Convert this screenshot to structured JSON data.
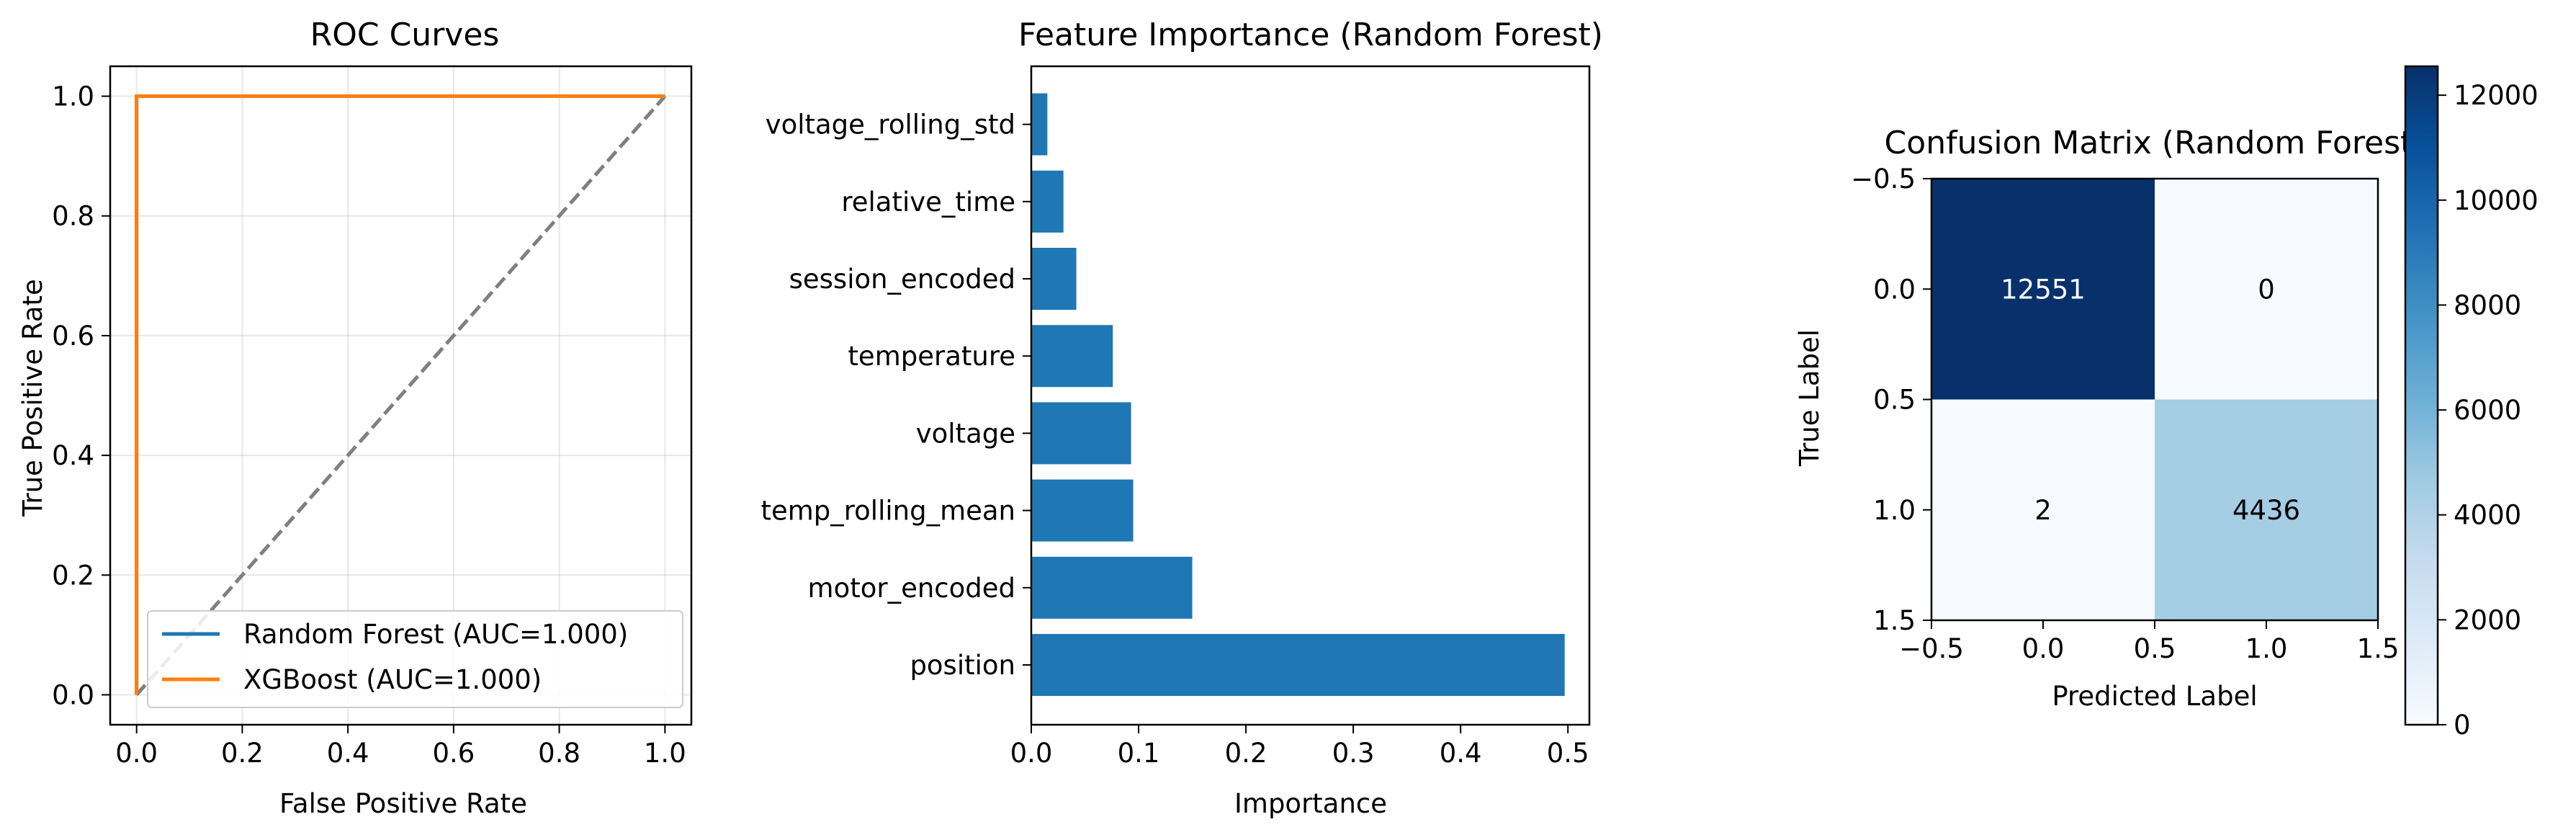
{
  "chart_data": [
    {
      "type": "line",
      "title": "ROC Curves",
      "xlabel": "False Positive Rate",
      "ylabel": "True Positive Rate",
      "xlim": [
        -0.05,
        1.05
      ],
      "ylim": [
        -0.05,
        1.05
      ],
      "xticks": [
        "0.0",
        "0.2",
        "0.4",
        "0.6",
        "0.8",
        "1.0"
      ],
      "yticks": [
        "0.0",
        "0.2",
        "0.4",
        "0.6",
        "0.8",
        "1.0"
      ],
      "grid": true,
      "legend": "lower-right",
      "series": [
        {
          "name": "Random Forest (AUC=1.000)",
          "color": "#1f77b4",
          "x": [
            0.0,
            0.0,
            0.0,
            1.0
          ],
          "y": [
            0.0,
            0.15,
            1.0,
            1.0
          ]
        },
        {
          "name": "XGBoost (AUC=1.000)",
          "color": "#ff7f0e",
          "x": [
            0.0,
            0.0,
            0.0,
            1.0
          ],
          "y": [
            0.0,
            0.15,
            1.0,
            1.0
          ]
        }
      ],
      "diagonal": {
        "color": "#7f7f7f",
        "x": [
          0,
          1
        ],
        "y": [
          0,
          1
        ]
      }
    },
    {
      "type": "bar",
      "orientation": "horizontal",
      "title": "Feature Importance (Random Forest)",
      "xlabel": "Importance",
      "ylabel": "",
      "xlim": [
        0,
        0.52
      ],
      "xticks": [
        "0.0",
        "0.1",
        "0.2",
        "0.3",
        "0.4",
        "0.5"
      ],
      "color": "#1f77b4",
      "categories": [
        "position",
        "motor_encoded",
        "temp_rolling_mean",
        "voltage",
        "temperature",
        "session_encoded",
        "relative_time",
        "voltage_rolling_std"
      ],
      "values": [
        0.497,
        0.15,
        0.095,
        0.093,
        0.076,
        0.042,
        0.03,
        0.015
      ]
    },
    {
      "type": "heatmap",
      "title": "Confusion Matrix (Random Forest)",
      "xlabel": "Predicted Label",
      "ylabel": "True Label",
      "xticks": [
        "−0.5",
        "0.0",
        "0.5",
        "1.0",
        "1.5"
      ],
      "yticks": [
        "−0.5",
        "0.0",
        "0.5",
        "1.0",
        "1.5"
      ],
      "colormap": "Blues",
      "matrix": [
        [
          12551,
          0
        ],
        [
          2,
          4436
        ]
      ],
      "colorbar_ticks": [
        "0",
        "2000",
        "4000",
        "6000",
        "8000",
        "10000",
        "12000"
      ],
      "colorbar_range": [
        0,
        12551
      ]
    }
  ]
}
